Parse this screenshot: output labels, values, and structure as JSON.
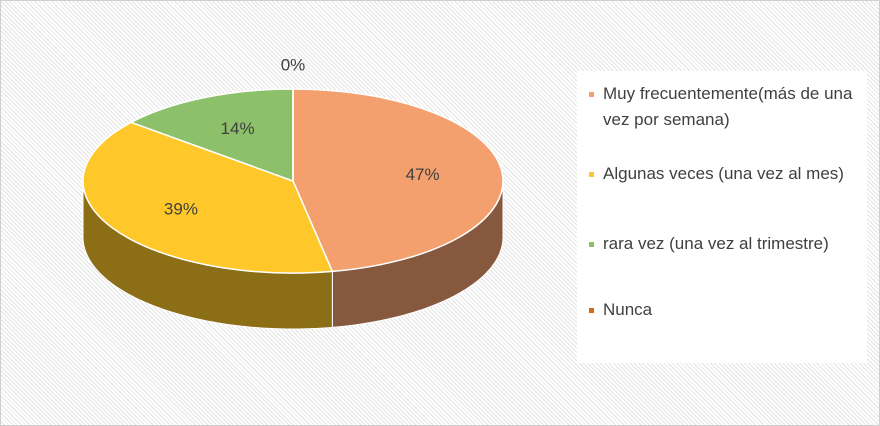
{
  "chart_data": {
    "type": "pie",
    "categories": [
      "Muy frecuentemente(más de una vez por semana)",
      "Algunas veces (una vez al mes)",
      "rara vez (una vez al trimestre)",
      "Nunca"
    ],
    "values": [
      47,
      39,
      14,
      0
    ],
    "value_labels": [
      "47%",
      "39%",
      "14%",
      "0%"
    ],
    "colors": [
      "#F4A06E",
      "#FFC82A",
      "#8DC06A",
      "#D2691E"
    ],
    "legend": "right"
  }
}
